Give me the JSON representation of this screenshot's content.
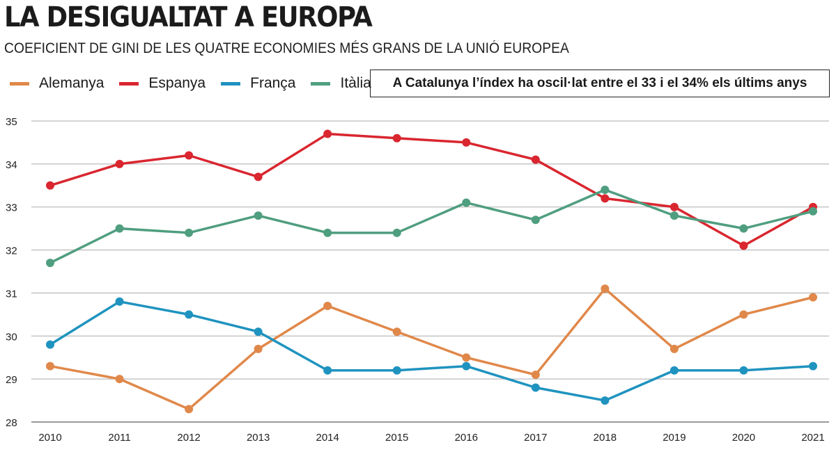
{
  "title": "LA DESIGUALTAT A EUROPA",
  "subtitle": "COEFICIENT DE GINI DE LES QUATRE ECONOMIES MÉS GRANS DE LA UNIÓ EUROPEA",
  "note": "A Catalunya l’índex ha oscil·lat entre el 33 i el 34% els últims anys",
  "chart_data": {
    "type": "line",
    "title": "LA DESIGUALTAT A EUROPA",
    "subtitle": "COEFICIENT DE GINI DE LES QUATRE ECONOMIES MÉS GRANS DE LA UNIÓ EUROPEA",
    "x": [
      "2010",
      "2011",
      "2012",
      "2013",
      "2014",
      "2015",
      "2016",
      "2017",
      "2018",
      "2019",
      "2020",
      "2021"
    ],
    "ylim": [
      28,
      35
    ],
    "yticks": [
      "28",
      "29",
      "30",
      "31",
      "32",
      "33",
      "34",
      "35"
    ],
    "grid": "horizontal",
    "legend": "top-left",
    "series": [
      {
        "name": "Alemanya",
        "color": "#e0884a",
        "values": [
          29.3,
          29.0,
          28.3,
          29.7,
          30.7,
          30.1,
          29.5,
          29.1,
          31.1,
          29.7,
          30.5,
          30.9
        ]
      },
      {
        "name": "Espanya",
        "color": "#d9262f",
        "values": [
          33.5,
          34.0,
          34.2,
          33.7,
          34.7,
          34.6,
          34.5,
          34.1,
          33.2,
          33.0,
          32.1,
          33.0
        ]
      },
      {
        "name": "França",
        "color": "#1f93bf",
        "values": [
          29.8,
          30.8,
          30.5,
          30.1,
          29.2,
          29.2,
          29.3,
          28.8,
          28.5,
          29.2,
          29.2,
          29.3
        ]
      },
      {
        "name": "Itàlia",
        "color": "#4f9e80",
        "values": [
          31.7,
          32.5,
          32.4,
          32.8,
          32.4,
          32.4,
          33.1,
          32.7,
          33.4,
          32.8,
          32.5,
          32.9
        ]
      }
    ]
  }
}
